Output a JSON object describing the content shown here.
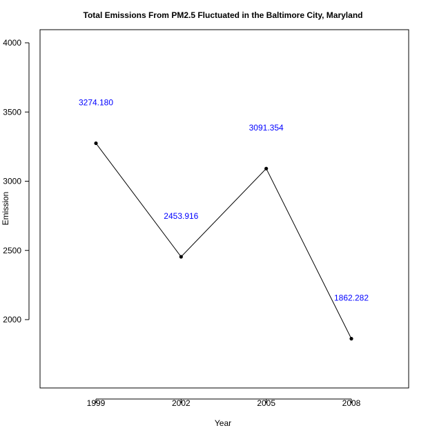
{
  "chart_data": {
    "type": "line",
    "title": "Total Emissions From PM2.5 Fluctuated in the Baltimore City, Maryland",
    "xlabel": "Year",
    "ylabel": "Emission",
    "categories": [
      "1999",
      "2002",
      "2005",
      "2008"
    ],
    "series": [
      {
        "name": "Emission",
        "values": [
          3274.18,
          2453.916,
          3091.354,
          1862.282
        ],
        "labels": [
          "3274.180",
          "2453.916",
          "3091.354",
          "1862.282"
        ]
      }
    ],
    "ylim": [
      1500,
      4000
    ],
    "y_ticks": [
      2000,
      2500,
      3000,
      3500,
      4000
    ],
    "grid": false,
    "legend": "none",
    "colors": {
      "line": "#000000",
      "point": "#000000",
      "data_label": "#0000ff",
      "axis": "#000000"
    }
  }
}
